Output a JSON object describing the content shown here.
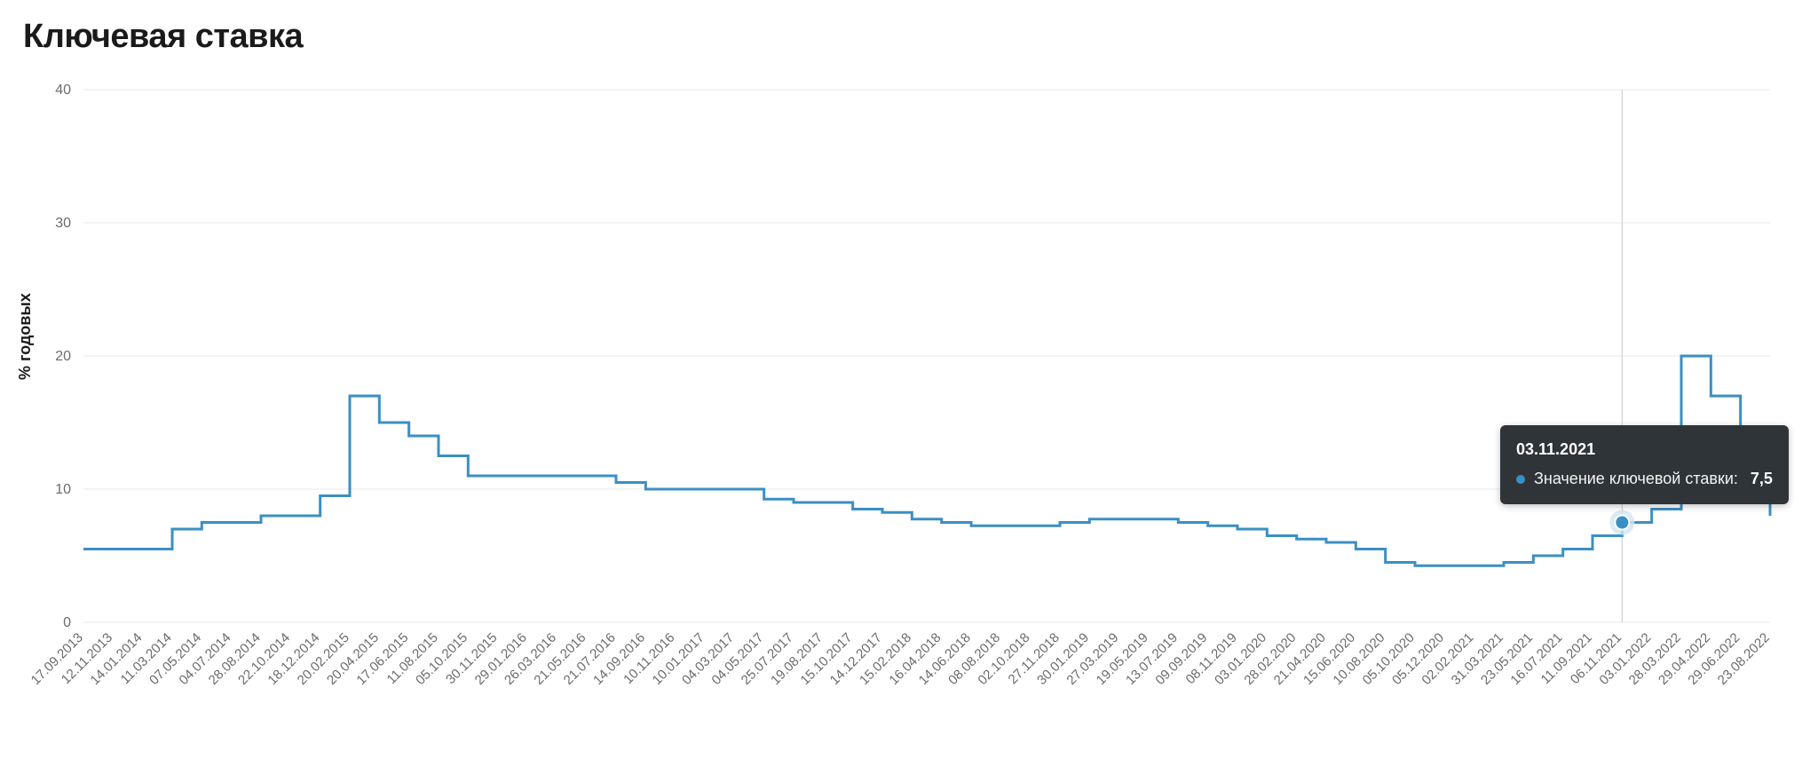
{
  "title": "Ключевая ставка",
  "y_axis_label": "% годовых",
  "chart": {
    "type": "line-step",
    "background_color": "#ffffff",
    "line_color": "#3b8fc4",
    "line_width": 3,
    "grid_color": "#e9e9e9",
    "axis_font_size": 16,
    "tick_font_size": 15,
    "ylim": [
      0,
      40
    ],
    "yticks": [
      0,
      10,
      20,
      30,
      40
    ],
    "x_labels": [
      "17.09.2013",
      "12.11.2013",
      "14.01.2014",
      "11.03.2014",
      "07.05.2014",
      "04.07.2014",
      "28.08.2014",
      "22.10.2014",
      "18.12.2014",
      "20.02.2015",
      "20.04.2015",
      "17.06.2015",
      "11.08.2015",
      "05.10.2015",
      "30.11.2015",
      "29.01.2016",
      "26.03.2016",
      "21.05.2016",
      "21.07.2016",
      "14.09.2016",
      "10.11.2016",
      "10.01.2017",
      "04.03.2017",
      "04.05.2017",
      "25.07.2017",
      "19.08.2017",
      "15.10.2017",
      "14.12.2017",
      "15.02.2018",
      "16.04.2018",
      "14.06.2018",
      "08.08.2018",
      "02.10.2018",
      "27.11.2018",
      "30.01.2019",
      "27.03.2019",
      "19.05.2019",
      "13.07.2019",
      "09.09.2019",
      "08.11.2019",
      "03.01.2020",
      "28.02.2020",
      "21.04.2020",
      "15.06.2020",
      "10.08.2020",
      "05.10.2020",
      "05.12.2020",
      "02.02.2021",
      "31.03.2021",
      "23.05.2021",
      "16.07.2021",
      "11.09.2021",
      "06.11.2021",
      "03.01.2022",
      "28.03.2022",
      "29.04.2022",
      "29.06.2022",
      "23.08.2022"
    ],
    "values": [
      5.5,
      5.5,
      5.5,
      7.0,
      7.5,
      7.5,
      8.0,
      8.0,
      9.5,
      17.0,
      15.0,
      14.0,
      12.5,
      11.0,
      11.0,
      11.0,
      11.0,
      11.0,
      10.5,
      10.0,
      10.0,
      10.0,
      10.0,
      9.25,
      9.0,
      9.0,
      8.5,
      8.25,
      7.75,
      7.5,
      7.25,
      7.25,
      7.25,
      7.5,
      7.75,
      7.75,
      7.75,
      7.5,
      7.25,
      7.0,
      6.5,
      6.25,
      6.0,
      5.5,
      4.5,
      4.25,
      4.25,
      4.25,
      4.5,
      5.0,
      5.5,
      6.5,
      7.5,
      8.5,
      20.0,
      17.0,
      9.5,
      8.0
    ],
    "highlight_index": 52,
    "highlight_marker": {
      "radius": 8,
      "fill": "#3b8fc4",
      "halo_fill": "#cfe6f4",
      "halo_radius": 14
    },
    "crosshair_color": "#c9c9c9"
  },
  "tooltip": {
    "date": "03.11.2021",
    "series_label": "Значение ключевой ставки:",
    "value": "7,5",
    "dot_color": "#3b8fc4",
    "background": "#2f3438",
    "text_color": "#ffffff"
  }
}
